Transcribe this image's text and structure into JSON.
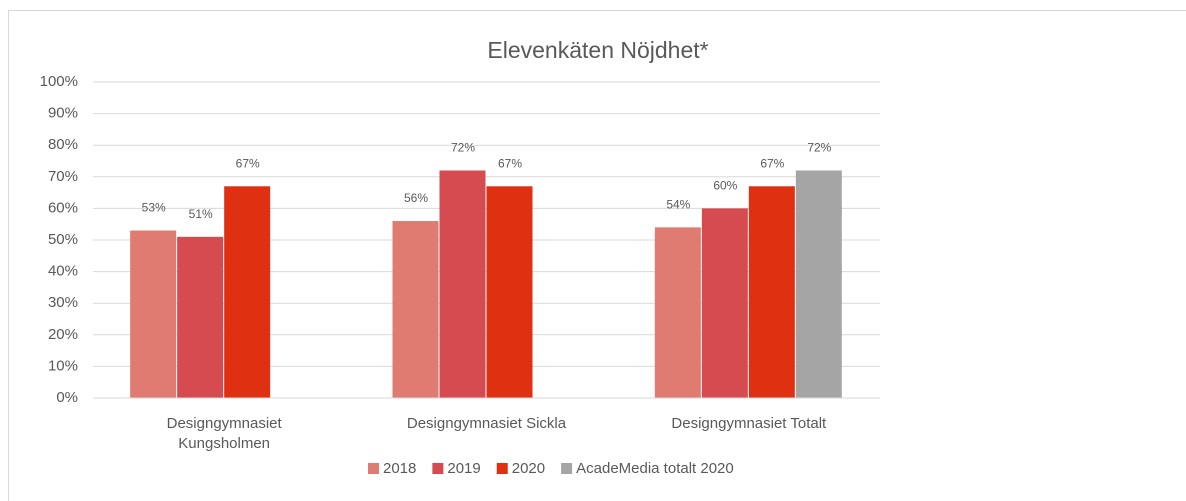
{
  "chart_data": {
    "type": "bar",
    "title": "Elevenkäten Nöjdhet*",
    "categories": [
      "Designgymnasiet Kungsholmen",
      "Designgymnasiet Sickla",
      "Designgymnasiet Totalt"
    ],
    "series": [
      {
        "name": "2018",
        "color": "#e07b72",
        "values": [
          53,
          56,
          54
        ],
        "value_labels": [
          "53%",
          "56%",
          "54%"
        ]
      },
      {
        "name": "2019",
        "color": "#d64b4f",
        "values": [
          51,
          72,
          60
        ],
        "value_labels": [
          "51%",
          "72%",
          "60%"
        ]
      },
      {
        "name": "2020",
        "color": "#e03012",
        "values": [
          67,
          67,
          67
        ],
        "value_labels": [
          "67%",
          "67%",
          "67%"
        ]
      },
      {
        "name": "AcadeMedia totalt 2020",
        "color": "#a5a5a5",
        "values": [
          null,
          null,
          72
        ],
        "value_labels": [
          null,
          null,
          "72%"
        ]
      }
    ],
    "ylim": [
      0,
      100
    ],
    "yticks": [
      {
        "value": 0,
        "label": "0%"
      },
      {
        "value": 10,
        "label": "10%"
      },
      {
        "value": 20,
        "label": "20%"
      },
      {
        "value": 30,
        "label": "30%"
      },
      {
        "value": 40,
        "label": "40%"
      },
      {
        "value": 50,
        "label": "50%"
      },
      {
        "value": 60,
        "label": "60%"
      },
      {
        "value": 70,
        "label": "70%"
      },
      {
        "value": 80,
        "label": "80%"
      },
      {
        "value": 90,
        "label": "90%"
      },
      {
        "value": 100,
        "label": "100%"
      }
    ],
    "grid": true,
    "legend": "bottom"
  }
}
